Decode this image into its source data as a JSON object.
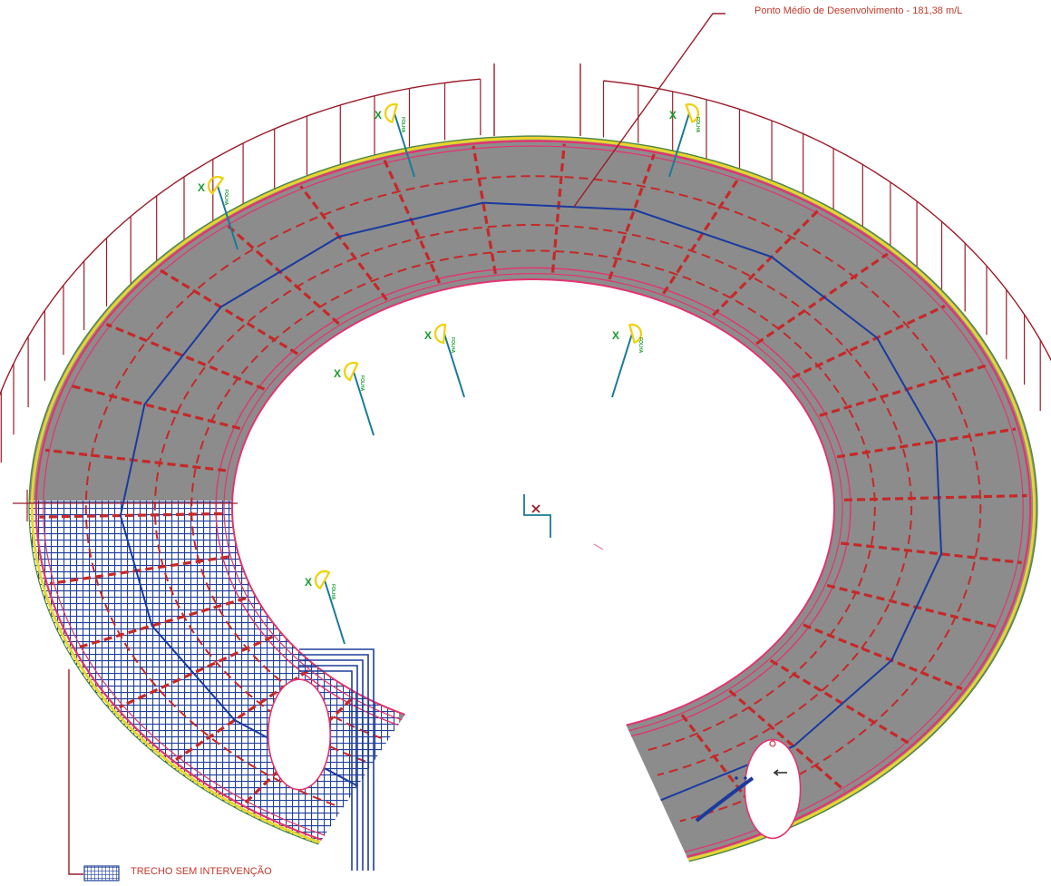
{
  "callout": {
    "label": "Ponto Médio de Desenvolvimento - 181,38 m/L"
  },
  "legend": {
    "label": "TRECHO SEM INTERVENÇÃO"
  },
  "markers": {
    "symbol_text": "X",
    "tag_text": "FOLHA",
    "count": 7
  },
  "colors": {
    "slab_fill": "#8c8c8c",
    "perimeter_line": "#e3346e",
    "dashed_grid": "#c62828",
    "walkway_line": "#1a3aa0",
    "edge_yellow": "#e8d62a",
    "edge_green": "#4a8a3a",
    "hatch_blue": "#1f3f9a",
    "dim_lines": "#9b1c2a",
    "marker_yellow": "#f0d000",
    "marker_green": "#1a9a2a",
    "marker_teal": "#1a7a9a"
  }
}
